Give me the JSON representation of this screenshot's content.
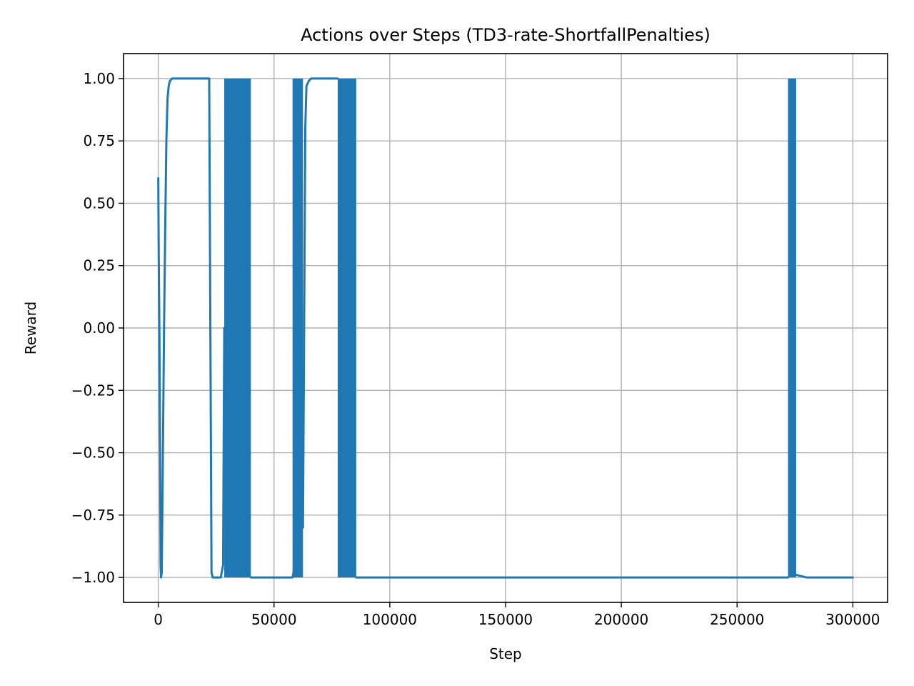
{
  "chart_data": {
    "type": "line",
    "title": "Actions over Steps (TD3-rate-ShortfallPenalties)",
    "xlabel": "Step",
    "ylabel": "Reward",
    "xlim": [
      -15000,
      315000
    ],
    "ylim": [
      -1.1,
      1.1
    ],
    "grid": true,
    "xticks": [
      0,
      50000,
      100000,
      150000,
      200000,
      250000,
      300000
    ],
    "xtick_labels": [
      "0",
      "50000",
      "100000",
      "150000",
      "200000",
      "250000",
      "300000"
    ],
    "yticks": [
      -1.0,
      -0.75,
      -0.5,
      -0.25,
      0.0,
      0.25,
      0.5,
      0.75,
      1.0
    ],
    "ytick_labels": [
      "−1.00",
      "−0.75",
      "−0.50",
      "−0.25",
      "0.00",
      "0.25",
      "0.50",
      "0.75",
      "1.00"
    ],
    "series": [
      {
        "color": "#1f77b4",
        "segments": [
          {
            "kind": "line",
            "x": [
              0,
              200,
              500,
              800,
              1000,
              1200,
              1500,
              2000,
              2500,
              3000,
              3500,
              4000,
              4500,
              5000,
              6000,
              8000,
              12000,
              20000,
              22000,
              22500,
              23000,
              23500,
              25000,
              27000,
              28000,
              28500
            ],
            "y": [
              0.6,
              0.3,
              -0.03,
              -0.5,
              -0.95,
              -1.0,
              -0.98,
              -0.5,
              0.0,
              0.4,
              0.75,
              0.92,
              0.97,
              0.99,
              1.0,
              1.0,
              1.0,
              1.0,
              1.0,
              0.0,
              -0.98,
              -1.0,
              -1.0,
              -1.0,
              -0.95,
              0.0
            ]
          },
          {
            "kind": "band",
            "x": [
              28500,
              36000
            ],
            "y": [
              -1.0,
              1.0
            ]
          },
          {
            "kind": "band",
            "x": [
              34000,
              40000
            ],
            "y": [
              -1.0,
              1.0
            ]
          },
          {
            "kind": "line",
            "x": [
              40000,
              45000,
              50000,
              55000,
              58000,
              59000
            ],
            "y": [
              -1.0,
              -1.0,
              -1.0,
              -1.0,
              -1.0,
              -0.95
            ]
          },
          {
            "kind": "band",
            "x": [
              58000,
              62500
            ],
            "y": [
              -1.0,
              1.0
            ]
          },
          {
            "kind": "line",
            "x": [
              62500,
              63000,
              63500,
              64000,
              65000,
              66000,
              68000,
              72000,
              76000,
              77500
            ],
            "y": [
              -0.8,
              0.0,
              0.8,
              0.97,
              0.99,
              1.0,
              1.0,
              1.0,
              1.0,
              1.0
            ]
          },
          {
            "kind": "band",
            "x": [
              77500,
              85500
            ],
            "y": [
              -1.0,
              1.0
            ]
          },
          {
            "kind": "line",
            "x": [
              85500,
              100000,
              150000,
              200000,
              250000,
              272000
            ],
            "y": [
              -1.0,
              -1.0,
              -1.0,
              -1.0,
              -1.0,
              -1.0
            ]
          },
          {
            "kind": "band",
            "x": [
              272000,
              275500
            ],
            "y": [
              -1.0,
              1.0
            ]
          },
          {
            "kind": "line",
            "x": [
              275500,
              280000,
              290000,
              300000
            ],
            "y": [
              -0.99,
              -1.0,
              -1.0,
              -1.0
            ]
          }
        ]
      }
    ]
  }
}
